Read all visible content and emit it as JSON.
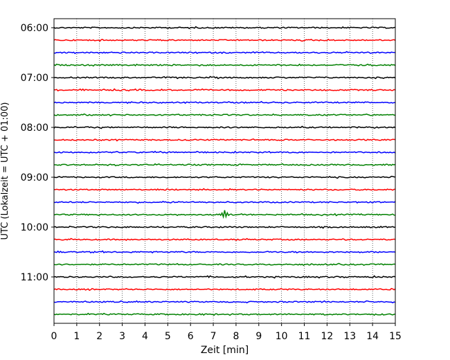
{
  "chart_data": {
    "type": "line",
    "title": "",
    "xlabel": "Zeit  [min]",
    "ylabel": "UTC (Lokalzeit = UTC + 01:00)",
    "xlim": [
      0,
      15
    ],
    "x_ticks": [
      0,
      1,
      2,
      3,
      4,
      5,
      6,
      7,
      8,
      9,
      10,
      11,
      12,
      13,
      14,
      15
    ],
    "grid": "vertical dotted",
    "legend": "none",
    "trace_colors": [
      "#000000",
      "#ff0000",
      "#0000ff",
      "#008000"
    ],
    "hour_labels": [
      {
        "trace_index": 0,
        "label": "06:00"
      },
      {
        "trace_index": 4,
        "label": "07:00"
      },
      {
        "trace_index": 8,
        "label": "08:00"
      },
      {
        "trace_index": 12,
        "label": "09:00"
      },
      {
        "trace_index": 16,
        "label": "10:00"
      },
      {
        "trace_index": 20,
        "label": "11:00"
      }
    ],
    "traces": [
      {
        "start": "06:00",
        "color": "#000000"
      },
      {
        "start": "06:15",
        "color": "#ff0000"
      },
      {
        "start": "06:30",
        "color": "#0000ff"
      },
      {
        "start": "06:45",
        "color": "#008000"
      },
      {
        "start": "07:00",
        "color": "#000000"
      },
      {
        "start": "07:15",
        "color": "#ff0000"
      },
      {
        "start": "07:30",
        "color": "#0000ff"
      },
      {
        "start": "07:45",
        "color": "#008000"
      },
      {
        "start": "08:00",
        "color": "#000000"
      },
      {
        "start": "08:15",
        "color": "#ff0000"
      },
      {
        "start": "08:30",
        "color": "#0000ff"
      },
      {
        "start": "08:45",
        "color": "#008000"
      },
      {
        "start": "09:00",
        "color": "#000000"
      },
      {
        "start": "09:15",
        "color": "#ff0000"
      },
      {
        "start": "09:30",
        "color": "#0000ff"
      },
      {
        "start": "09:45",
        "color": "#008000",
        "event_at_min": 7.5
      },
      {
        "start": "10:00",
        "color": "#000000"
      },
      {
        "start": "10:15",
        "color": "#ff0000"
      },
      {
        "start": "10:30",
        "color": "#0000ff"
      },
      {
        "start": "10:45",
        "color": "#008000"
      },
      {
        "start": "11:00",
        "color": "#000000"
      },
      {
        "start": "11:15",
        "color": "#ff0000"
      },
      {
        "start": "11:30",
        "color": "#0000ff"
      },
      {
        "start": "11:45",
        "color": "#008000"
      }
    ]
  }
}
